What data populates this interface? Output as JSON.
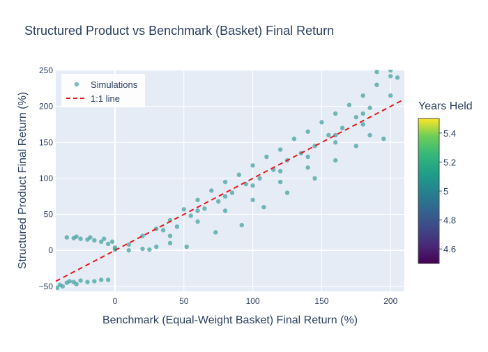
{
  "chart_data": {
    "type": "scatter",
    "title": "Structured Product vs Benchmark (Basket) Final Return",
    "xlabel": "Benchmark (Equal-Weight Basket) Final Return (%)",
    "ylabel": "Structured Product Final Return (%)",
    "xlim": [
      -43,
      210
    ],
    "ylim": [
      -57,
      251
    ],
    "x_ticks": [
      0,
      50,
      100,
      150,
      200
    ],
    "y_ticks": [
      -50,
      0,
      50,
      100,
      150,
      200,
      250
    ],
    "grid": true,
    "legend_position": "top-left",
    "legend": [
      "Simulations",
      "1:1 line"
    ],
    "colorbar": {
      "title": "Years Held",
      "ticks": [
        4.6,
        4.8,
        5,
        5.2,
        5.4
      ],
      "range": [
        4.5,
        5.5
      ],
      "colorscale": "viridis"
    },
    "series": [
      {
        "name": "Simulations",
        "kind": "scatter",
        "color": "#21918c",
        "color_value": 5,
        "points": [
          [
            -40,
            -48
          ],
          [
            -35,
            -45
          ],
          [
            -30,
            -44
          ],
          [
            -25,
            -42
          ],
          [
            -20,
            -44
          ],
          [
            -15,
            -43
          ],
          [
            -10,
            -41
          ],
          [
            -5,
            -41
          ],
          [
            -42,
            -52
          ],
          [
            -38,
            -50
          ],
          [
            -33,
            -43
          ],
          [
            -28,
            -47
          ],
          [
            -35,
            18
          ],
          [
            -30,
            17
          ],
          [
            -25,
            16
          ],
          [
            -20,
            15
          ],
          [
            -15,
            14
          ],
          [
            -10,
            12
          ],
          [
            -5,
            9
          ],
          [
            0,
            4
          ],
          [
            -28,
            19
          ],
          [
            -18,
            18
          ],
          [
            -8,
            16
          ],
          [
            -2,
            12
          ],
          [
            0,
            1
          ],
          [
            10,
            0
          ],
          [
            20,
            2
          ],
          [
            30,
            5
          ],
          [
            40,
            10
          ],
          [
            25,
            1
          ],
          [
            10,
            8
          ],
          [
            20,
            20
          ],
          [
            30,
            30
          ],
          [
            40,
            42
          ],
          [
            50,
            57
          ],
          [
            60,
            70
          ],
          [
            70,
            83
          ],
          [
            80,
            95
          ],
          [
            90,
            105
          ],
          [
            100,
            118
          ],
          [
            110,
            130
          ],
          [
            120,
            140
          ],
          [
            130,
            155
          ],
          [
            140,
            165
          ],
          [
            150,
            178
          ],
          [
            160,
            190
          ],
          [
            170,
            202
          ],
          [
            180,
            215
          ],
          [
            190,
            230
          ],
          [
            200,
            242
          ],
          [
            40,
            20
          ],
          [
            60,
            40
          ],
          [
            80,
            55
          ],
          [
            100,
            70
          ],
          [
            120,
            95
          ],
          [
            140,
            115
          ],
          [
            160,
            150
          ],
          [
            180,
            175
          ],
          [
            60,
            55
          ],
          [
            80,
            75
          ],
          [
            100,
            90
          ],
          [
            120,
            110
          ],
          [
            140,
            130
          ],
          [
            160,
            160
          ],
          [
            180,
            190
          ],
          [
            200,
            215
          ],
          [
            35,
            28
          ],
          [
            45,
            33
          ],
          [
            55,
            48
          ],
          [
            65,
            58
          ],
          [
            75,
            68
          ],
          [
            85,
            80
          ],
          [
            95,
            92
          ],
          [
            105,
            100
          ],
          [
            115,
            112
          ],
          [
            125,
            125
          ],
          [
            135,
            135
          ],
          [
            145,
            145
          ],
          [
            155,
            160
          ],
          [
            165,
            170
          ],
          [
            175,
            185
          ],
          [
            52,
            5
          ],
          [
            73,
            25
          ],
          [
            92,
            35
          ],
          [
            108,
            60
          ],
          [
            125,
            80
          ],
          [
            145,
            100
          ],
          [
            160,
            125
          ],
          [
            175,
            145
          ],
          [
            185,
            160
          ],
          [
            195,
            155
          ],
          [
            205,
            240
          ],
          [
            200,
            250
          ],
          [
            190,
            248
          ],
          [
            185,
            198
          ]
        ]
      },
      {
        "name": "1:1 line",
        "kind": "line",
        "color": "#e31a1c",
        "dash": "dash",
        "points": [
          [
            -43,
            -43
          ],
          [
            210,
            210
          ]
        ]
      }
    ]
  }
}
